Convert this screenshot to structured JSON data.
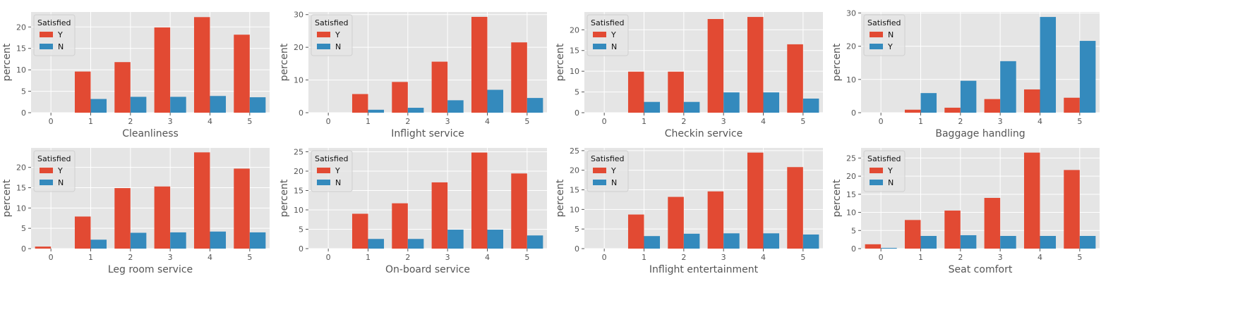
{
  "chart_data": [
    {
      "type": "bar",
      "xlabel": "Cleanliness",
      "ylabel": "percent",
      "categories": [
        "0",
        "1",
        "2",
        "3",
        "4",
        "5"
      ],
      "ylim": [
        0,
        23.5
      ],
      "yticks": [
        0,
        5,
        10,
        15,
        20
      ],
      "legend": {
        "title": "Satisfied",
        "position": "top-left"
      },
      "series": [
        {
          "name": "Y",
          "color": "#E24A33",
          "values": [
            0,
            9.6,
            11.8,
            19.9,
            22.3,
            18.2
          ]
        },
        {
          "name": "N",
          "color": "#348ABD",
          "values": [
            0,
            3.2,
            3.7,
            3.7,
            3.9,
            3.6
          ]
        }
      ]
    },
    {
      "type": "bar",
      "xlabel": "Inflight service",
      "ylabel": "percent",
      "categories": [
        "0",
        "1",
        "2",
        "3",
        "4",
        "5"
      ],
      "ylim": [
        0,
        30.8
      ],
      "yticks": [
        0,
        10,
        20,
        30
      ],
      "legend": {
        "title": "Satisfied",
        "position": "top-left"
      },
      "series": [
        {
          "name": "Y",
          "color": "#E24A33",
          "values": [
            0,
            5.7,
            9.4,
            15.6,
            29.3,
            21.5
          ]
        },
        {
          "name": "N",
          "color": "#348ABD",
          "values": [
            0,
            0.9,
            1.5,
            3.8,
            7.0,
            4.5
          ]
        }
      ]
    },
    {
      "type": "bar",
      "xlabel": "Checkin service",
      "ylabel": "percent",
      "categories": [
        "0",
        "1",
        "2",
        "3",
        "4",
        "5"
      ],
      "ylim": [
        0,
        24.3
      ],
      "yticks": [
        0,
        5,
        10,
        15,
        20
      ],
      "legend": {
        "title": "Satisfied",
        "position": "top-left"
      },
      "series": [
        {
          "name": "Y",
          "color": "#E24A33",
          "values": [
            0,
            9.9,
            9.9,
            22.6,
            23.1,
            16.5
          ]
        },
        {
          "name": "N",
          "color": "#348ABD",
          "values": [
            0,
            2.6,
            2.6,
            4.9,
            4.9,
            3.4
          ]
        }
      ]
    },
    {
      "type": "bar",
      "xlabel": "Baggage handling",
      "ylabel": "percent",
      "categories": [
        "0",
        "1",
        "2",
        "3",
        "4",
        "5"
      ],
      "ylim": [
        0,
        30.3
      ],
      "yticks": [
        0,
        10,
        20,
        30
      ],
      "legend": {
        "title": "Satisfied",
        "position": "top-left"
      },
      "series": [
        {
          "name": "N",
          "color": "#E24A33",
          "values": [
            0,
            0.9,
            1.5,
            4.1,
            7.0,
            4.5
          ]
        },
        {
          "name": "Y",
          "color": "#348ABD",
          "values": [
            0,
            5.9,
            9.6,
            15.5,
            28.8,
            21.6
          ]
        }
      ]
    },
    {
      "type": "bar",
      "xlabel": "Leg room service",
      "ylabel": "percent",
      "categories": [
        "0",
        "1",
        "2",
        "3",
        "4",
        "5"
      ],
      "ylim": [
        0,
        24.8
      ],
      "yticks": [
        0,
        5,
        10,
        15,
        20
      ],
      "legend": {
        "title": "Satisfied",
        "position": "top-left"
      },
      "series": [
        {
          "name": "Y",
          "color": "#E24A33",
          "values": [
            0.5,
            7.9,
            14.9,
            15.3,
            23.7,
            19.7
          ]
        },
        {
          "name": "N",
          "color": "#348ABD",
          "values": [
            0,
            2.2,
            3.9,
            4.0,
            4.2,
            4.0
          ]
        }
      ]
    },
    {
      "type": "bar",
      "xlabel": "On-board service",
      "ylabel": "percent",
      "categories": [
        "0",
        "1",
        "2",
        "3",
        "4",
        "5"
      ],
      "ylim": [
        0,
        26.0
      ],
      "yticks": [
        0,
        5,
        10,
        15,
        20,
        25
      ],
      "legend": {
        "title": "Satisfied",
        "position": "top-left"
      },
      "series": [
        {
          "name": "Y",
          "color": "#E24A33",
          "values": [
            0,
            9.0,
            11.7,
            17.1,
            24.8,
            19.4
          ]
        },
        {
          "name": "N",
          "color": "#348ABD",
          "values": [
            0,
            2.5,
            2.5,
            4.9,
            4.9,
            3.4
          ]
        }
      ]
    },
    {
      "type": "bar",
      "xlabel": "Inflight entertainment",
      "ylabel": "percent",
      "categories": [
        "0",
        "1",
        "2",
        "3",
        "4",
        "5"
      ],
      "ylim": [
        0,
        25.7
      ],
      "yticks": [
        0,
        5,
        10,
        15,
        20,
        25
      ],
      "legend": {
        "title": "Satisfied",
        "position": "top-left"
      },
      "series": [
        {
          "name": "Y",
          "color": "#E24A33",
          "values": [
            0,
            8.7,
            13.2,
            14.6,
            24.5,
            20.8
          ]
        },
        {
          "name": "N",
          "color": "#348ABD",
          "values": [
            0,
            3.2,
            3.8,
            3.9,
            3.9,
            3.6
          ]
        }
      ]
    },
    {
      "type": "bar",
      "xlabel": "Seat comfort",
      "ylabel": "percent",
      "categories": [
        "0",
        "1",
        "2",
        "3",
        "4",
        "5"
      ],
      "ylim": [
        0,
        27.8
      ],
      "yticks": [
        0,
        5,
        10,
        15,
        20,
        25
      ],
      "legend": {
        "title": "Satisfied",
        "position": "top-left"
      },
      "series": [
        {
          "name": "Y",
          "color": "#E24A33",
          "values": [
            1.2,
            7.9,
            10.5,
            14.0,
            26.5,
            21.7
          ]
        },
        {
          "name": "N",
          "color": "#348ABD",
          "values": [
            0.2,
            3.5,
            3.7,
            3.5,
            3.5,
            3.5
          ]
        }
      ]
    }
  ]
}
